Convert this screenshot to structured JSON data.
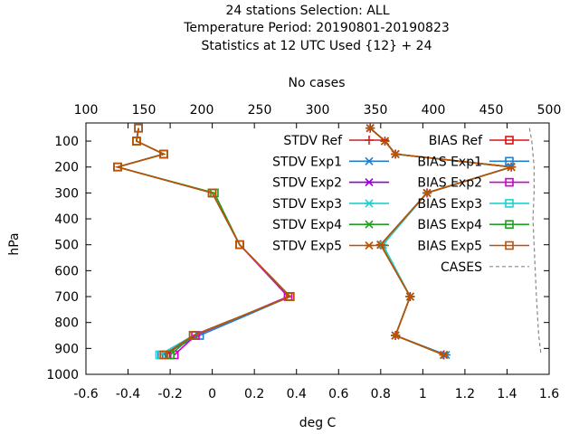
{
  "chart_data": {
    "type": "line",
    "title": [
      "24 stations Selection: ALL",
      "Temperature  Period: 20190801-20190823",
      "Statistics at 12 UTC  Used {12} + 24"
    ],
    "xlabel": "deg C",
    "ylabel": "hPa",
    "x2label": "No cases",
    "xlim": [
      -0.6,
      1.6
    ],
    "x2lim": [
      100,
      500
    ],
    "ylim": [
      1000,
      30
    ],
    "y_reversed": true,
    "xticks": [
      "-0.6",
      "-0.4",
      "-0.2",
      "0",
      "0.2",
      "0.4",
      "0.6",
      "0.8",
      "1",
      "1.2",
      "1.4",
      "1.6"
    ],
    "x2ticks": [
      "100",
      "150",
      "200",
      "250",
      "300",
      "350",
      "400",
      "450",
      "500"
    ],
    "yticks": [
      "100",
      "200",
      "300",
      "400",
      "500",
      "600",
      "700",
      "800",
      "900",
      "1000"
    ],
    "levels": [
      50,
      100,
      150,
      200,
      300,
      500,
      700,
      850,
      925
    ],
    "legend_position": "top-right",
    "series": [
      {
        "name": "STDV Ref",
        "color": "#cc2222",
        "marker": "plus",
        "values": [
          0.75,
          0.82,
          0.87,
          1.42,
          1.02,
          0.8,
          0.94,
          0.87,
          1.1
        ]
      },
      {
        "name": "STDV Exp1",
        "color": "#1e7fd0",
        "marker": "star",
        "values": [
          0.75,
          0.82,
          0.87,
          1.42,
          1.02,
          0.81,
          0.94,
          0.87,
          1.11
        ]
      },
      {
        "name": "STDV Exp2",
        "color": "#9400d3",
        "marker": "star",
        "values": [
          0.75,
          0.82,
          0.87,
          1.42,
          1.02,
          0.8,
          0.94,
          0.87,
          1.1
        ]
      },
      {
        "name": "STDV Exp3",
        "color": "#20d0d0",
        "marker": "star",
        "values": [
          0.75,
          0.82,
          0.87,
          1.42,
          1.02,
          0.81,
          0.94,
          0.87,
          1.1
        ]
      },
      {
        "name": "STDV Exp4",
        "color": "#20a020",
        "marker": "star",
        "values": [
          0.75,
          0.82,
          0.87,
          1.42,
          1.02,
          0.8,
          0.94,
          0.87,
          1.1
        ]
      },
      {
        "name": "STDV Exp5",
        "color": "#c05000",
        "marker": "star",
        "values": [
          0.75,
          0.82,
          0.87,
          1.42,
          1.02,
          0.8,
          0.94,
          0.87,
          1.1
        ]
      },
      {
        "name": "BIAS Ref",
        "color": "#dd1111",
        "marker": "square",
        "values": [
          -0.35,
          -0.36,
          -0.23,
          -0.45,
          0.0,
          0.13,
          0.37,
          -0.09,
          -0.22
        ]
      },
      {
        "name": "BIAS Exp1",
        "color": "#1e7fd0",
        "marker": "square",
        "values": [
          -0.35,
          -0.36,
          -0.23,
          -0.45,
          0.0,
          0.13,
          0.37,
          -0.06,
          -0.24
        ]
      },
      {
        "name": "BIAS Exp2",
        "color": "#cc00cc",
        "marker": "square",
        "values": [
          -0.35,
          -0.36,
          -0.23,
          -0.45,
          0.0,
          0.13,
          0.36,
          -0.08,
          -0.18
        ]
      },
      {
        "name": "BIAS Exp3",
        "color": "#20d0d0",
        "marker": "square",
        "values": [
          -0.35,
          -0.36,
          -0.23,
          -0.45,
          0.0,
          0.13,
          0.37,
          -0.09,
          -0.25
        ]
      },
      {
        "name": "BIAS Exp4",
        "color": "#20a020",
        "marker": "square",
        "values": [
          -0.35,
          -0.36,
          -0.23,
          -0.45,
          0.01,
          0.13,
          0.37,
          -0.09,
          -0.2
        ]
      },
      {
        "name": "BIAS Exp5",
        "color": "#c05000",
        "marker": "square",
        "values": [
          -0.35,
          -0.36,
          -0.23,
          -0.45,
          0.0,
          0.13,
          0.37,
          -0.09,
          -0.23
        ]
      }
    ],
    "cases": {
      "name": "CASES",
      "color": "#888888",
      "dashed": true,
      "levels": [
        50,
        100,
        150,
        200,
        300,
        400,
        500,
        700,
        850,
        925
      ],
      "values": [
        483,
        485,
        486,
        487,
        487,
        486,
        487,
        489,
        491,
        493
      ]
    }
  }
}
